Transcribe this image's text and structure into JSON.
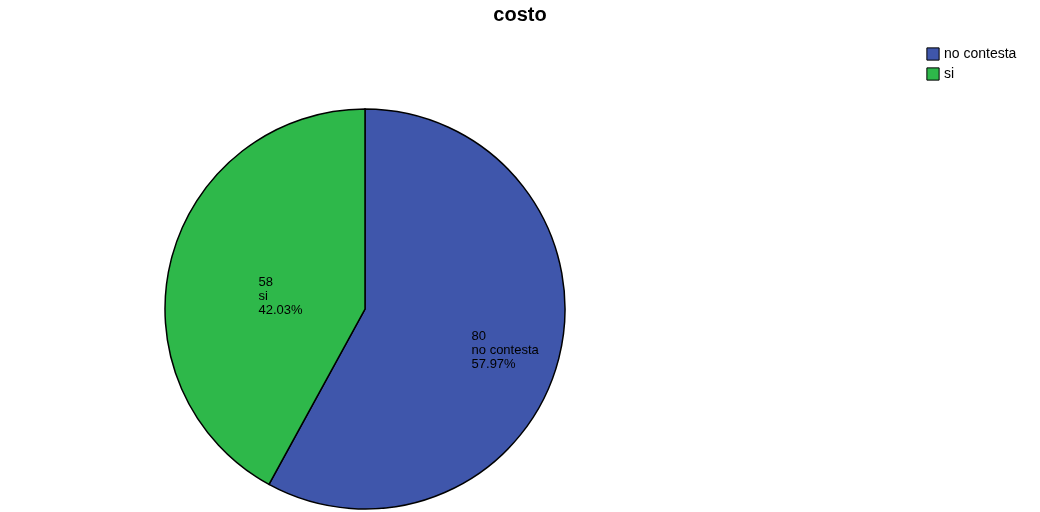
{
  "chart_data": {
    "type": "pie",
    "title": "costo",
    "categories": [
      "no contesta",
      "si"
    ],
    "values": [
      80,
      58
    ],
    "colors": [
      "#3f56ab",
      "#2eb84a"
    ],
    "value_labels": [
      "80\nno contesta\n57.97%",
      "58\nsi\n42.03%"
    ],
    "legend": "top right"
  }
}
